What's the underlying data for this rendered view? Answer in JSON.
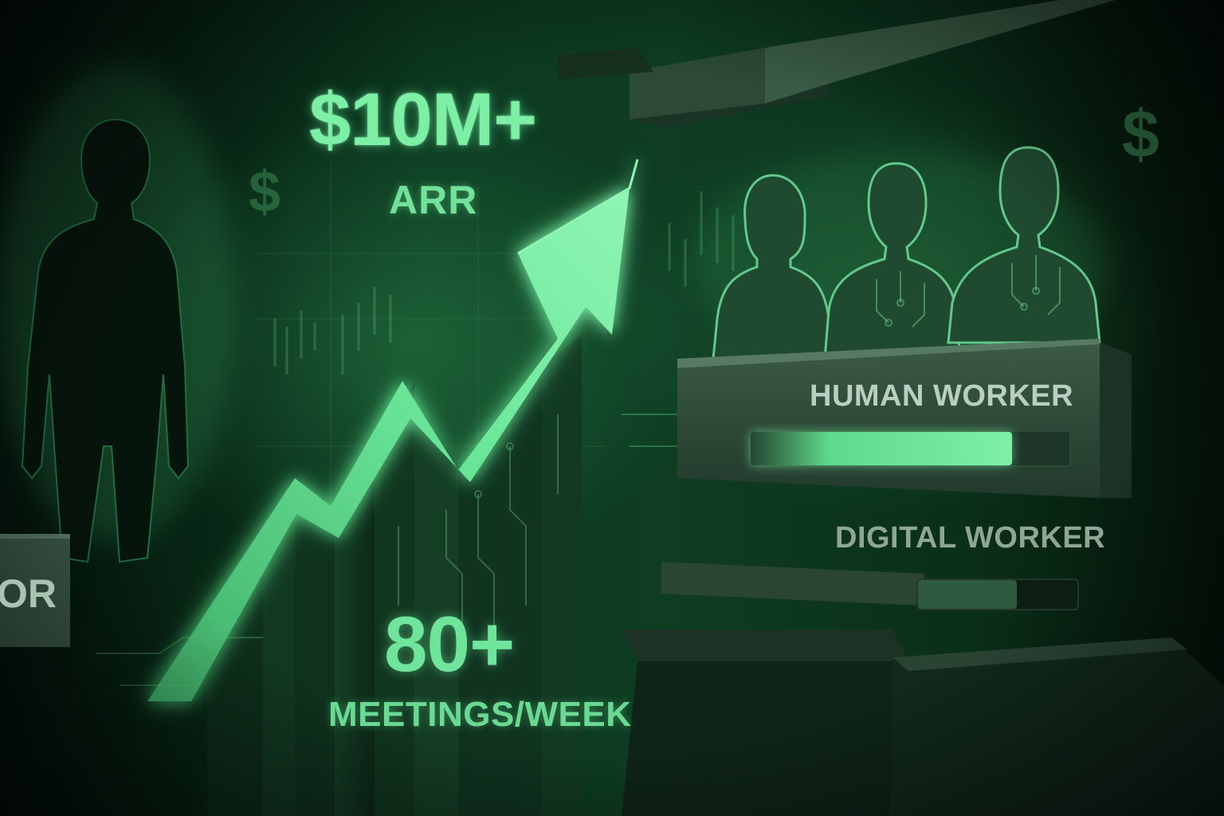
{
  "metrics": {
    "arr": {
      "value": "$10M+",
      "label": "ARR"
    },
    "meetings": {
      "value": "80+",
      "label": "MEETINGS/WEEK"
    }
  },
  "comparison": {
    "human_worker": {
      "label": "HUMAN WORKER",
      "fill_fraction": 0.82
    },
    "digital_worker": {
      "label": "DIGITAL WORKER",
      "fill_fraction": 0.62
    }
  },
  "left_panel": {
    "text": "OR"
  },
  "decorations": {
    "currency_symbol": "$"
  },
  "colors": {
    "accent": "#7ef0a6",
    "bar_human": "#5fd98c",
    "bar_digital": "#2f5a3f",
    "background": "#0c3a20"
  },
  "icons": [
    "person-silhouette-icon",
    "growth-arrow-icon",
    "team-silhouettes-icon",
    "dollar-icon"
  ]
}
